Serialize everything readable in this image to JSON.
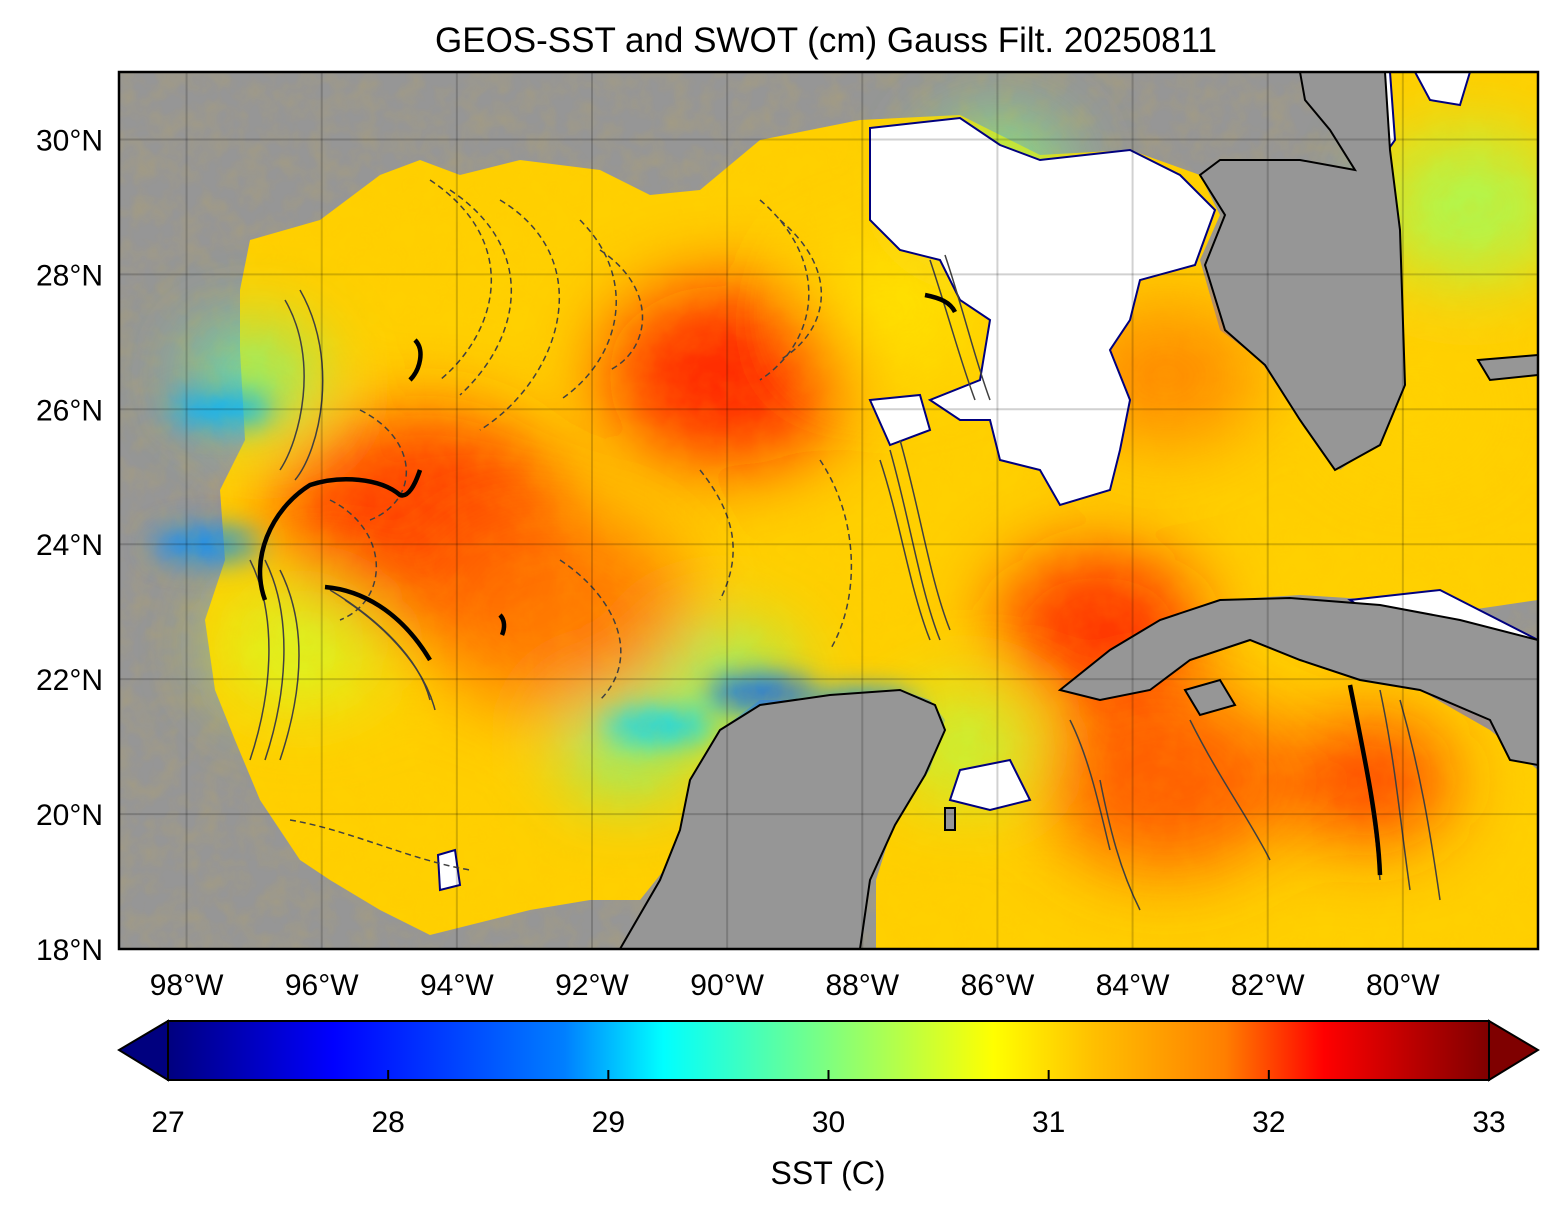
{
  "title": "GEOS-SST  and SWOT (cm) Gauss Filt. 20250811",
  "map": {
    "lon_range": [
      -99.0,
      -78.0
    ],
    "lat_range": [
      18.0,
      31.0
    ],
    "land_color": "#969696",
    "nodata_color": "#ffffff",
    "grid": true,
    "lon_ticks": [
      {
        "value": -98,
        "label": "98°W"
      },
      {
        "value": -96,
        "label": "96°W"
      },
      {
        "value": -94,
        "label": "94°W"
      },
      {
        "value": -92,
        "label": "92°W"
      },
      {
        "value": -90,
        "label": "90°W"
      },
      {
        "value": -88,
        "label": "88°W"
      },
      {
        "value": -86,
        "label": "86°W"
      },
      {
        "value": -84,
        "label": "84°W"
      },
      {
        "value": -82,
        "label": "82°W"
      },
      {
        "value": -80,
        "label": "80°W"
      }
    ],
    "lat_ticks": [
      {
        "value": 18,
        "label": "18°N"
      },
      {
        "value": 20,
        "label": "20°N"
      },
      {
        "value": 22,
        "label": "22°N"
      },
      {
        "value": 24,
        "label": "24°N"
      },
      {
        "value": 26,
        "label": "26°N"
      },
      {
        "value": 28,
        "label": "28°N"
      },
      {
        "value": 30,
        "label": "30°N"
      }
    ],
    "sst_regions": [
      {
        "lon": -94.5,
        "lat": 24.3,
        "sst": 32.0,
        "r": 2.2
      },
      {
        "lon": -90.0,
        "lat": 26.5,
        "sst": 32.2,
        "r": 1.8
      },
      {
        "lon": -92.5,
        "lat": 23.0,
        "sst": 31.6,
        "r": 2.0
      },
      {
        "lon": -84.5,
        "lat": 22.8,
        "sst": 32.1,
        "r": 1.5
      },
      {
        "lon": -83.5,
        "lat": 20.5,
        "sst": 31.8,
        "r": 1.8
      },
      {
        "lon": -83.5,
        "lat": 26.5,
        "sst": 31.5,
        "r": 1.4
      },
      {
        "lon": -87.5,
        "lat": 27.5,
        "sst": 30.9,
        "r": 1.2
      },
      {
        "lon": -97.0,
        "lat": 26.5,
        "sst": 29.8,
        "r": 0.9
      },
      {
        "lon": -96.3,
        "lat": 22.5,
        "sst": 30.5,
        "r": 1.2
      },
      {
        "lon": -90.0,
        "lat": 22.0,
        "sst": 30.0,
        "r": 1.0
      },
      {
        "lon": -91.5,
        "lat": 21.0,
        "sst": 29.8,
        "r": 0.9
      },
      {
        "lon": -86.5,
        "lat": 21.0,
        "sst": 30.3,
        "r": 1.0
      },
      {
        "lon": -86.0,
        "lat": 29.5,
        "sst": 30.0,
        "r": 1.0
      },
      {
        "lon": -79.0,
        "lat": 29.0,
        "sst": 30.2,
        "r": 1.4
      },
      {
        "lon": -79.8,
        "lat": 26.0,
        "sst": 31.0,
        "r": 1.0
      },
      {
        "lon": -80.5,
        "lat": 20.5,
        "sst": 32.0,
        "r": 1.2
      }
    ],
    "cold_upwelling": [
      {
        "lon": -89.5,
        "lat": 21.8,
        "sst": 28.3
      },
      {
        "lon": -88.0,
        "lat": 21.6,
        "sst": 28.6
      },
      {
        "lon": -91.0,
        "lat": 21.3,
        "sst": 29.0
      },
      {
        "lon": -97.7,
        "lat": 24.0,
        "sst": 28.6
      },
      {
        "lon": -97.5,
        "lat": 26.0,
        "sst": 28.8
      }
    ]
  },
  "colorbar": {
    "min": 27,
    "max": 33,
    "extend": "both",
    "label": "SST (C)",
    "ticks": [
      {
        "value": 27,
        "label": "27"
      },
      {
        "value": 28,
        "label": "28"
      },
      {
        "value": 29,
        "label": "29"
      },
      {
        "value": 30,
        "label": "30"
      },
      {
        "value": 31,
        "label": "31"
      },
      {
        "value": 32,
        "label": "32"
      },
      {
        "value": 33,
        "label": "33"
      }
    ],
    "colors": [
      "#00007f",
      "#0000ff",
      "#007fff",
      "#00ffff",
      "#7fff7f",
      "#ffff00",
      "#ff7f00",
      "#ff0000",
      "#7f0000"
    ]
  }
}
